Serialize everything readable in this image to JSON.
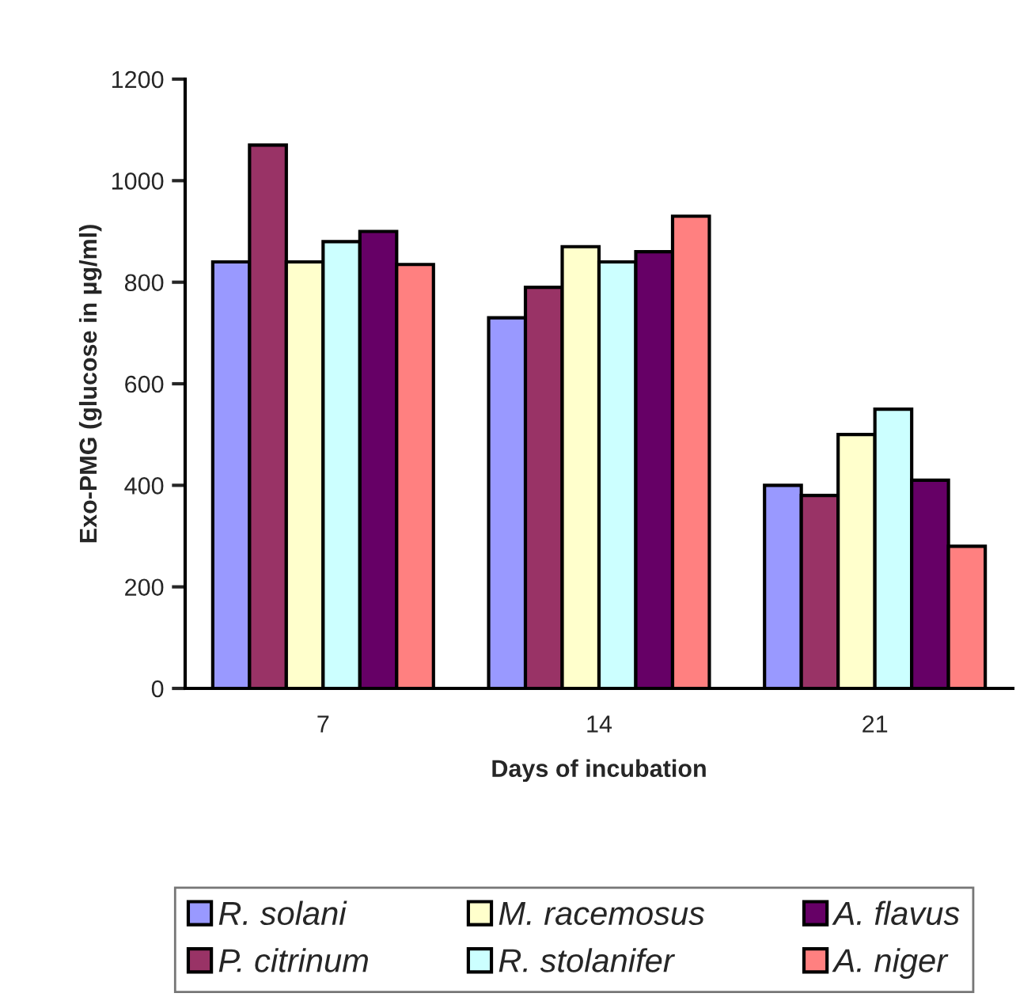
{
  "chart_data": {
    "type": "bar",
    "xlabel": "Days of incubation",
    "ylabel": "Exo-PMG (glucose in µg/ml)",
    "categories": [
      "7",
      "14",
      "21"
    ],
    "series": [
      {
        "name": "R. solani",
        "color": "#9999ff",
        "values": [
          840,
          730,
          400
        ]
      },
      {
        "name": "P. citrinum",
        "color": "#993366",
        "values": [
          1070,
          790,
          380
        ]
      },
      {
        "name": "M. racemosus",
        "color": "#ffffcc",
        "values": [
          840,
          870,
          500
        ]
      },
      {
        "name": "R. stolanifer",
        "color": "#ccffff",
        "values": [
          880,
          840,
          550
        ]
      },
      {
        "name": "A. flavus",
        "color": "#660066",
        "values": [
          900,
          860,
          410
        ]
      },
      {
        "name": "A. niger",
        "color": "#ff8080",
        "values": [
          835,
          930,
          280
        ]
      }
    ],
    "ylim": [
      0,
      1200
    ],
    "yticks": [
      0,
      200,
      400,
      600,
      800,
      1000,
      1200
    ],
    "grid": false,
    "legend": "bottom"
  }
}
